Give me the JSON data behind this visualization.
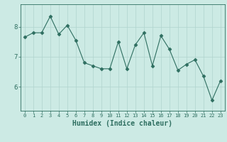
{
  "x": [
    0,
    1,
    2,
    3,
    4,
    5,
    6,
    7,
    8,
    9,
    10,
    11,
    12,
    13,
    14,
    15,
    16,
    17,
    18,
    19,
    20,
    21,
    22,
    23
  ],
  "y": [
    7.65,
    7.8,
    7.8,
    8.35,
    7.75,
    8.05,
    7.55,
    6.8,
    6.7,
    6.6,
    6.6,
    7.5,
    6.6,
    7.4,
    7.8,
    6.7,
    7.7,
    7.25,
    6.55,
    6.75,
    6.9,
    6.35,
    5.55,
    6.2
  ],
  "line_color": "#2e6e60",
  "marker": "D",
  "marker_size": 2.5,
  "bg_color": "#cceae4",
  "grid_color": "#b0d4ce",
  "xlabel": "Humidex (Indice chaleur)",
  "yticks": [
    6,
    7,
    8
  ],
  "ylim": [
    5.2,
    8.75
  ],
  "xlim": [
    -0.5,
    23.5
  ],
  "tick_color": "#2e6e60",
  "label_fontsize": 7,
  "axis_color": "#2e6e60",
  "xtick_fontsize": 5,
  "ytick_fontsize": 6.5
}
